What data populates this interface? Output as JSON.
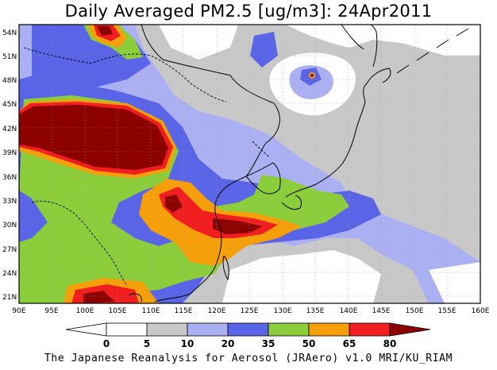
{
  "title": "Daily Averaged PM2.5 [ug/m3]: 24Apr2011",
  "credit": "The Japanese Reanalysis for Aerosol (JRAero) v1.0 MRI/KU_RIAM",
  "lat_labels": [
    "54N",
    "51N",
    "48N",
    "45N",
    "42N",
    "39N",
    "36N",
    "33N",
    "30N",
    "27N",
    "24N",
    "21N"
  ],
  "lon_labels": [
    "90E",
    "95E",
    "100E",
    "105E",
    "110E",
    "115E",
    "120E",
    "125E",
    "130E",
    "135E",
    "140E",
    "145E",
    "150E",
    "155E",
    "160E"
  ],
  "colorbar": {
    "levels": [
      "0",
      "5",
      "10",
      "20",
      "35",
      "50",
      "65",
      "80"
    ],
    "colors": [
      "#ffffff",
      "#c8c8c8",
      "#aab0f2",
      "#5a64e6",
      "#8ccd3c",
      "#f5a00a",
      "#f01e1e",
      "#8c0000"
    ]
  },
  "palette": {
    "c5": "#c8c8c8",
    "c10": "#aab0f2",
    "c20": "#5a64e6",
    "c35": "#8ccd3c",
    "c50": "#f5a00a",
    "c65": "#f01e1e",
    "c80": "#8c0000"
  }
}
